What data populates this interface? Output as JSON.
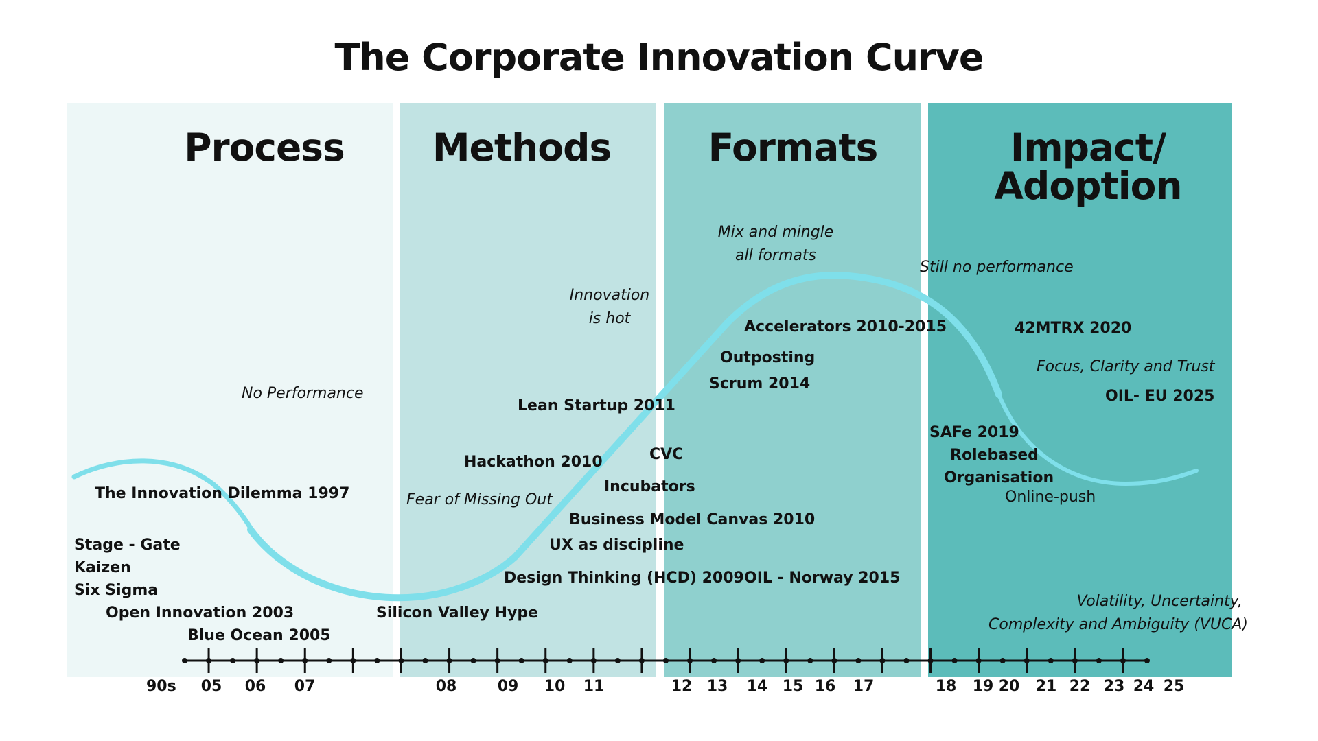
{
  "title": "The Corporate Innovation Curve",
  "colors": {
    "process_bg": "#edf7f7",
    "methods_bg": "#c1e3e3",
    "formats_bg": "#8fd0ce",
    "impact_bg": "#5cbcba",
    "curve": "#7fdfea",
    "axis": "#111111"
  },
  "phases": {
    "process": "Process",
    "methods": "Methods",
    "formats": "Formats",
    "impact_line1": "Impact/",
    "impact_line2": "Adoption"
  },
  "annotations": {
    "no_performance": "No Performance",
    "fear_of_missing_out": "Fear of Missing Out",
    "innovation_is_hot_1": "Innovation",
    "innovation_is_hot_2": "is hot",
    "mix_and_mingle_1": "Mix and mingle",
    "mix_and_mingle_2": "all formats",
    "still_no_performance": "Still no performance",
    "focus_clarity_trust": "Focus, Clarity and Trust",
    "vuca_1": "Volatility, Uncertainty,",
    "vuca_2": "Complexity and Ambiguity (VUCA)"
  },
  "milestones": {
    "innovation_dilemma": "The Innovation Dilemma 1997",
    "stage_gate": "Stage - Gate",
    "kaizen": "Kaizen",
    "six_sigma": "Six Sigma",
    "open_innovation": "Open Innovation 2003",
    "blue_ocean": "Blue Ocean 2005",
    "silicon_valley": "Silicon Valley Hype",
    "hackathon": "Hackathon 2010",
    "lean_startup": "Lean Startup 2011",
    "cvc": "CVC",
    "incubators": "Incubators",
    "bmc": "Business Model Canvas 2010",
    "ux": "UX as discipline",
    "design_thinking": "Design Thinking (HCD) 2009",
    "oil_norway": "OIL - Norway 2015",
    "accelerators": "Accelerators 2010-2015",
    "outposting": "Outposting",
    "scrum": "Scrum 2014",
    "mtrx": "42MTRX 2020",
    "oil_eu": "OIL- EU 2025",
    "safe": "SAFe 2019",
    "rolebased_1": "Rolebased",
    "rolebased_2": "Organisation",
    "online_push": "Online-push"
  },
  "timeline": {
    "labels": [
      "90s",
      "05",
      "06",
      "07",
      "08",
      "09",
      "10",
      "11",
      "12",
      "13",
      "14",
      "15",
      "16",
      "17",
      "18",
      "19",
      "20",
      "21",
      "22",
      "23",
      "24",
      "25"
    ]
  }
}
